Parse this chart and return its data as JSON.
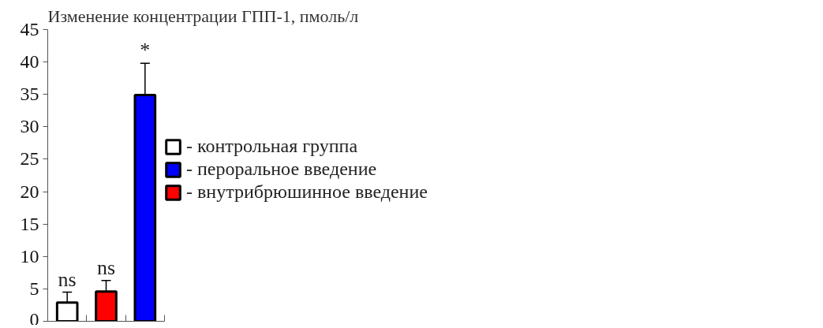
{
  "chart_data": {
    "type": "bar",
    "title": "Изменение концентрации ГПП-1, пмоль/л",
    "categories": [
      null,
      null,
      null
    ],
    "series": [
      {
        "name": "- контрольная группа",
        "color": "#ffffff",
        "values": [
          2.9,
          null,
          null
        ],
        "errors": [
          1.6,
          null,
          null
        ]
      },
      {
        "name": "- пероральное введение",
        "color": "#0000ff",
        "values": [
          null,
          null,
          34.9
        ],
        "errors": [
          null,
          null,
          4.9
        ]
      },
      {
        "name": "- внутрибрюшинное введение",
        "color": "#ff0000",
        "values": [
          null,
          4.6,
          null
        ],
        "errors": [
          null,
          1.7,
          null
        ]
      }
    ],
    "annotations": [
      "ns",
      "ns",
      "*"
    ],
    "ylim": [
      0,
      45
    ],
    "yticks": [
      0,
      5,
      10,
      15,
      20,
      25,
      30,
      35,
      40,
      45
    ],
    "grid": false,
    "legend": "top right"
  }
}
